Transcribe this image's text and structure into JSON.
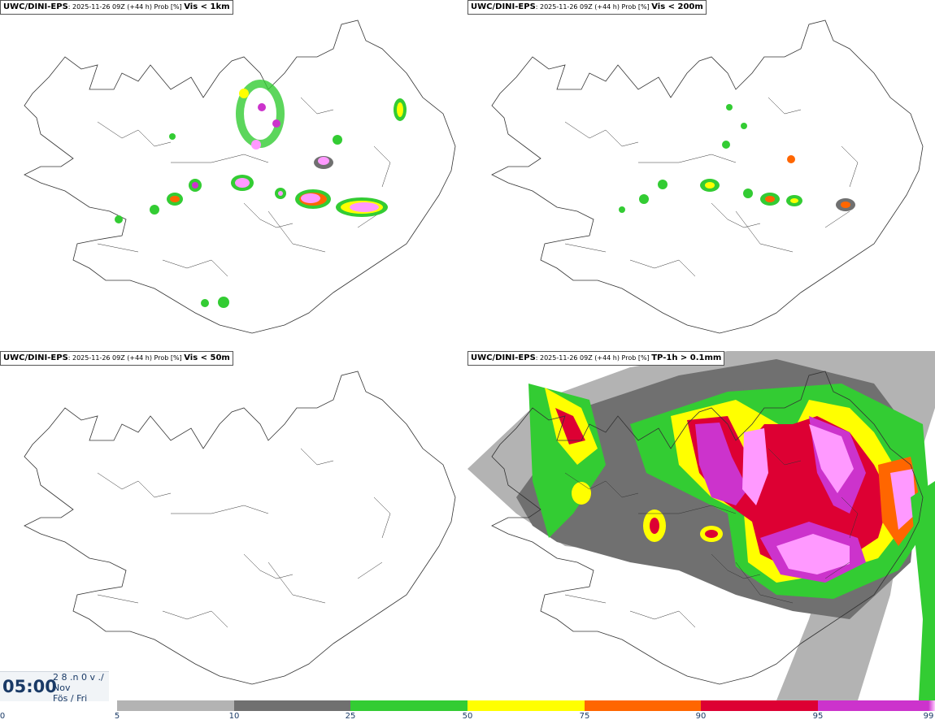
{
  "panels": [
    {
      "model": "UWC/DINI-EPS",
      "subtitle": ": 2025-11-26 09Z (+44 h) Prob [%] ",
      "threshold": "Vis < 1km"
    },
    {
      "model": "UWC/DINI-EPS",
      "subtitle": ": 2025-11-26 09Z (+44 h) Prob [%] ",
      "threshold": "Vis < 200m"
    },
    {
      "model": "UWC/DINI-EPS",
      "subtitle": ": 2025-11-26 09Z (+44 h) Prob [%] ",
      "threshold": "Vis < 50m"
    },
    {
      "model": "UWC/DINI-EPS",
      "subtitle": ": 2025-11-26 09Z (+44 h) Prob [%] ",
      "threshold": "TP-1h > 0.1mm"
    }
  ],
  "valid_time": {
    "time": "05:00",
    "line1": "2 8 .n 0 v ./",
    "line2": "Nov",
    "line3": "Fös / Fri"
  },
  "legend": {
    "ticks": [
      "0",
      "5",
      "10",
      "25",
      "50",
      "75",
      "90",
      "95",
      "99"
    ],
    "colors": [
      "#ffffff",
      "#b3b3b3",
      "#707070",
      "#33cc33",
      "#ffff00",
      "#ff6600",
      "#dd0033",
      "#cc33cc",
      "#ff99ff"
    ]
  }
}
